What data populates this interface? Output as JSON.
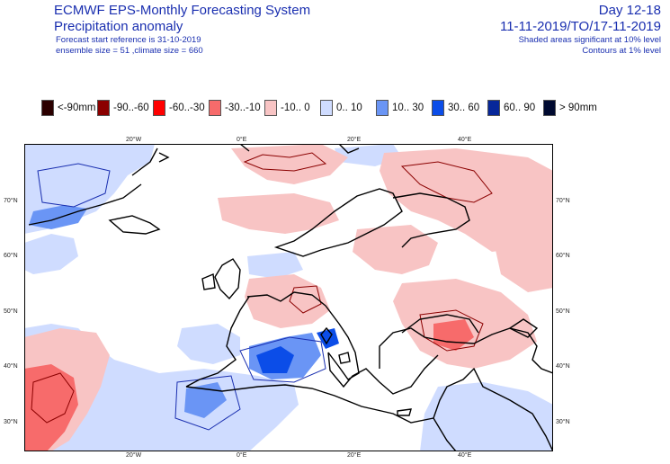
{
  "header": {
    "title_line1": "ECMWF EPS-Monthly Forecasting System",
    "title_line2": "Precipitation anomaly",
    "forecast_start": "Forecast start reference is 31-10-2019",
    "ensemble_info": "ensemble size = 51  ,climate size = 660",
    "day_range": "Day 12-18",
    "date_range": "11-11-2019/TO/17-11-2019",
    "shading_note": "Shaded areas significant at 10% level",
    "contour_note": "Contours at 1% level"
  },
  "legend": [
    {
      "label": "<-90mm",
      "color": "#2b0000"
    },
    {
      "label": "-90..-60",
      "color": "#8b0000"
    },
    {
      "label": "-60..-30",
      "color": "#ff0000"
    },
    {
      "label": "-30..-10",
      "color": "#f76b6b"
    },
    {
      "label": "-10..  0",
      "color": "#f8c4c4"
    },
    {
      "label": "0..  10",
      "color": "#cfdcff"
    },
    {
      "label": "10..  30",
      "color": "#6a95f5"
    },
    {
      "label": "30..  60",
      "color": "#0b4de8"
    },
    {
      "label": "60..  90",
      "color": "#07279a"
    },
    {
      "label": ">  90mm",
      "color": "#000a30"
    }
  ],
  "map": {
    "lon_labels": [
      "20°W",
      "0°E",
      "20°E",
      "40°E"
    ],
    "lat_labels": [
      "70°N",
      "60°N",
      "50°N",
      "40°N",
      "30°N"
    ]
  }
}
